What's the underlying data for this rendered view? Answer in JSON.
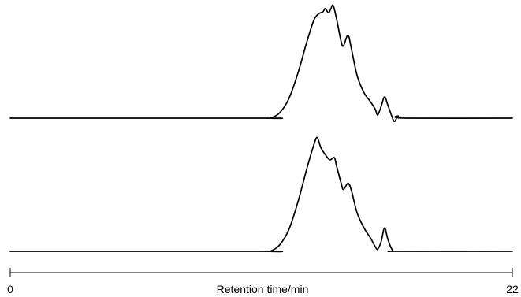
{
  "chart_data": {
    "type": "line",
    "xlabel": "Retention time/min",
    "xlim": [
      0,
      22
    ],
    "x_tick_labels": [
      "0",
      "22"
    ],
    "grid": false,
    "legend": "none",
    "line_color": "#000000",
    "series": [
      {
        "points": [
          [
            0,
            0.0
          ],
          [
            11.0,
            0.0
          ],
          [
            11.4,
            0.002
          ],
          [
            11.8,
            0.05
          ],
          [
            12.2,
            0.18
          ],
          [
            12.6,
            0.42
          ],
          [
            13.0,
            0.72
          ],
          [
            13.3,
            0.92
          ],
          [
            13.5,
            0.98
          ],
          [
            13.7,
            1.0
          ],
          [
            13.8,
            1.03
          ],
          [
            13.95,
            0.99
          ],
          [
            14.05,
            1.03
          ],
          [
            14.15,
            1.06
          ],
          [
            14.3,
            0.93
          ],
          [
            14.5,
            0.72
          ],
          [
            14.6,
            0.68
          ],
          [
            14.8,
            0.78
          ],
          [
            14.95,
            0.65
          ],
          [
            15.2,
            0.4
          ],
          [
            15.5,
            0.24
          ],
          [
            15.8,
            0.15
          ],
          [
            16.0,
            0.08
          ],
          [
            16.1,
            0.03
          ],
          [
            16.25,
            0.11
          ],
          [
            16.4,
            0.2
          ],
          [
            16.55,
            0.12
          ],
          [
            16.75,
            0.0
          ],
          [
            16.85,
            -0.03
          ],
          [
            17.0,
            0.02
          ],
          [
            17.3,
            0.0
          ],
          [
            22,
            0.0
          ]
        ]
      },
      {
        "points": [
          [
            0,
            0.0
          ],
          [
            11.0,
            0.0
          ],
          [
            11.4,
            0.002
          ],
          [
            11.8,
            0.06
          ],
          [
            12.2,
            0.2
          ],
          [
            12.6,
            0.46
          ],
          [
            13.0,
            0.78
          ],
          [
            13.3,
            1.0
          ],
          [
            13.45,
            1.07
          ],
          [
            13.6,
            0.98
          ],
          [
            13.8,
            0.91
          ],
          [
            14.0,
            0.86
          ],
          [
            14.2,
            0.88
          ],
          [
            14.3,
            0.8
          ],
          [
            14.5,
            0.64
          ],
          [
            14.6,
            0.58
          ],
          [
            14.8,
            0.64
          ],
          [
            14.95,
            0.57
          ],
          [
            15.2,
            0.36
          ],
          [
            15.5,
            0.22
          ],
          [
            15.8,
            0.12
          ],
          [
            16.0,
            0.04
          ],
          [
            16.1,
            0.02
          ],
          [
            16.25,
            0.09
          ],
          [
            16.4,
            0.22
          ],
          [
            16.55,
            0.11
          ],
          [
            16.75,
            0.01
          ],
          [
            17.0,
            0.0
          ],
          [
            22,
            0.0
          ]
        ]
      }
    ]
  }
}
